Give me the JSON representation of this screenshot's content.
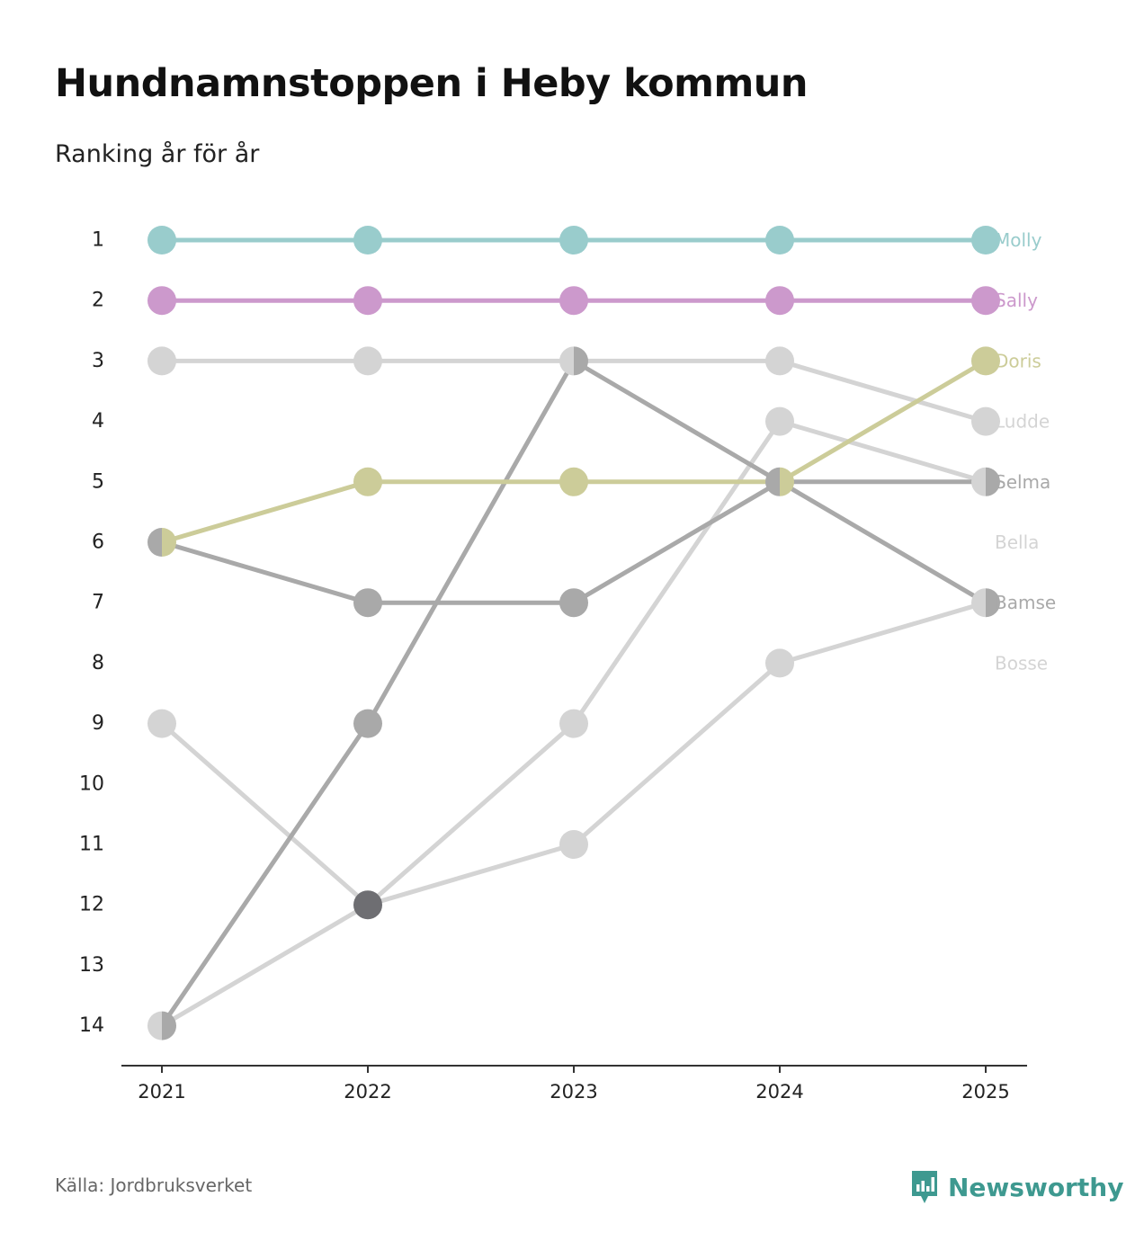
{
  "title": "Hundnamnstoppen i Heby kommun",
  "subtitle": "Ranking år för år",
  "source": "Källa: Jordbruksverket",
  "brand": "Newsworthy",
  "colors": {
    "accent": "#3e9990",
    "axis": "#333333",
    "text": "#222222"
  },
  "chart_data": {
    "type": "line",
    "x": [
      "2021",
      "2022",
      "2023",
      "2024",
      "2025"
    ],
    "y_ticks": [
      "1",
      "2",
      "3",
      "4",
      "5",
      "6",
      "7",
      "8",
      "9",
      "10",
      "11",
      "12",
      "13",
      "14"
    ],
    "ylim": [
      1,
      14
    ],
    "y_inverted": true,
    "xlabel": "",
    "ylabel": "",
    "series": [
      {
        "name": "Bosse",
        "values": [
          14,
          12,
          11,
          8,
          7
        ],
        "color": "#d4d4d4",
        "label_rank": 8
      },
      {
        "name": "Bella",
        "values": [
          9,
          12,
          9,
          4,
          5
        ],
        "color": "#d4d4d4",
        "label_rank": 6
      },
      {
        "name": "Ludde",
        "values": [
          3,
          3,
          3,
          3,
          4
        ],
        "color": "#d4d4d4",
        "label_rank": 4
      },
      {
        "name": "Bamse",
        "values": [
          14,
          9,
          3,
          5,
          7
        ],
        "color": "#a9a9a9",
        "label_rank": 7
      },
      {
        "name": "Selma",
        "values": [
          6,
          7,
          7,
          5,
          5
        ],
        "color": "#a9a9a9",
        "label_rank": 5
      },
      {
        "name": "Doris",
        "values": [
          6,
          5,
          5,
          5,
          3
        ],
        "color": "#cccc99",
        "label_rank": 3
      },
      {
        "name": "Sally",
        "values": [
          2,
          2,
          2,
          2,
          2
        ],
        "color": "#cc99cc",
        "label_rank": 2
      },
      {
        "name": "Molly",
        "values": [
          1,
          1,
          1,
          1,
          1
        ],
        "color": "#99cccc",
        "label_rank": 1
      }
    ]
  }
}
